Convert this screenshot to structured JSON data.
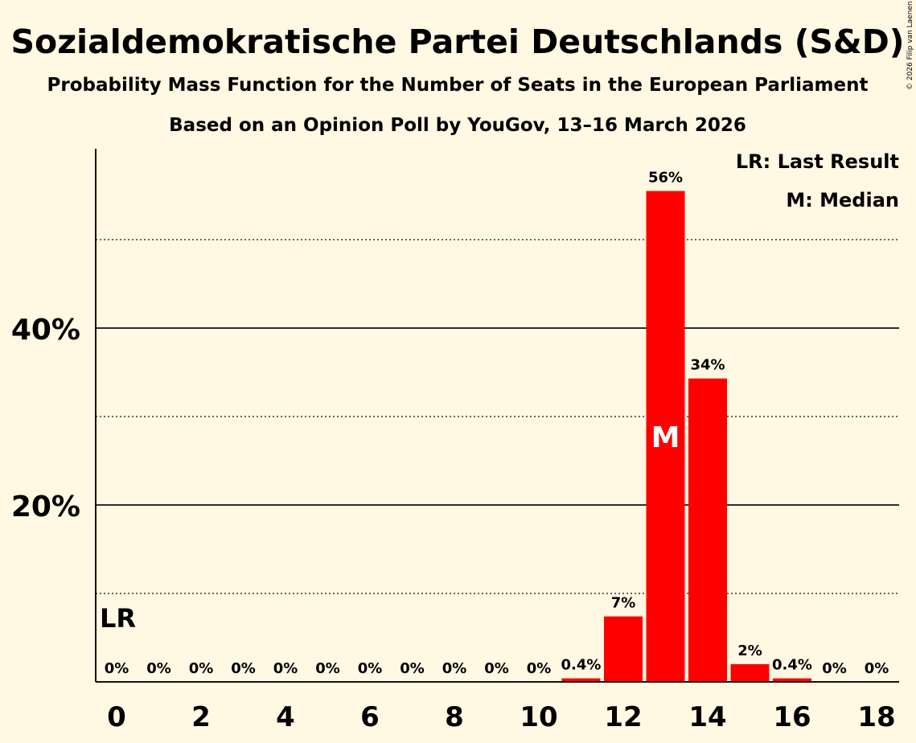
{
  "chart_data": {
    "type": "bar",
    "title": "Sozialdemokratische Partei Deutschlands (S&D)",
    "subtitle": "Probability Mass Function for the Number of Seats in the European Parliament",
    "subtitle2": "Based on an Opinion Poll by YouGov, 13–16 March 2026",
    "copyright": "© 2026 Filip van Laenen",
    "xlabel": "",
    "ylabel": "",
    "ylim": [
      0,
      60
    ],
    "x": [
      0,
      1,
      2,
      3,
      4,
      5,
      6,
      7,
      8,
      9,
      10,
      11,
      12,
      13,
      14,
      15,
      16,
      17,
      18
    ],
    "values": [
      0,
      0,
      0,
      0,
      0,
      0,
      0,
      0,
      0,
      0,
      0,
      0.4,
      7.4,
      55.5,
      34.3,
      2.0,
      0.4,
      0,
      0
    ],
    "data_labels": [
      "0%",
      "0%",
      "0%",
      "0%",
      "0%",
      "0%",
      "0%",
      "0%",
      "0%",
      "0%",
      "0%",
      "0.4%",
      "7%",
      "56%",
      "34%",
      "2%",
      "0.4%",
      "0%",
      "0%"
    ],
    "x_tick_labels": [
      "0",
      "2",
      "4",
      "6",
      "8",
      "10",
      "12",
      "14",
      "16",
      "18"
    ],
    "x_tick_values": [
      0,
      2,
      4,
      6,
      8,
      10,
      12,
      14,
      16,
      18
    ],
    "y_major_ticks": [
      20,
      40
    ],
    "y_major_labels": [
      "20%",
      "40%"
    ],
    "y_minor_ticks": [
      10,
      30,
      50
    ],
    "last_result_seat": 0,
    "last_result_marker": "LR",
    "median_seat": 13,
    "median_marker": "M",
    "legend": [
      "LR: Last Result",
      "M: Median"
    ],
    "legend_position": "top-right",
    "bar_color": "#ff0000"
  }
}
